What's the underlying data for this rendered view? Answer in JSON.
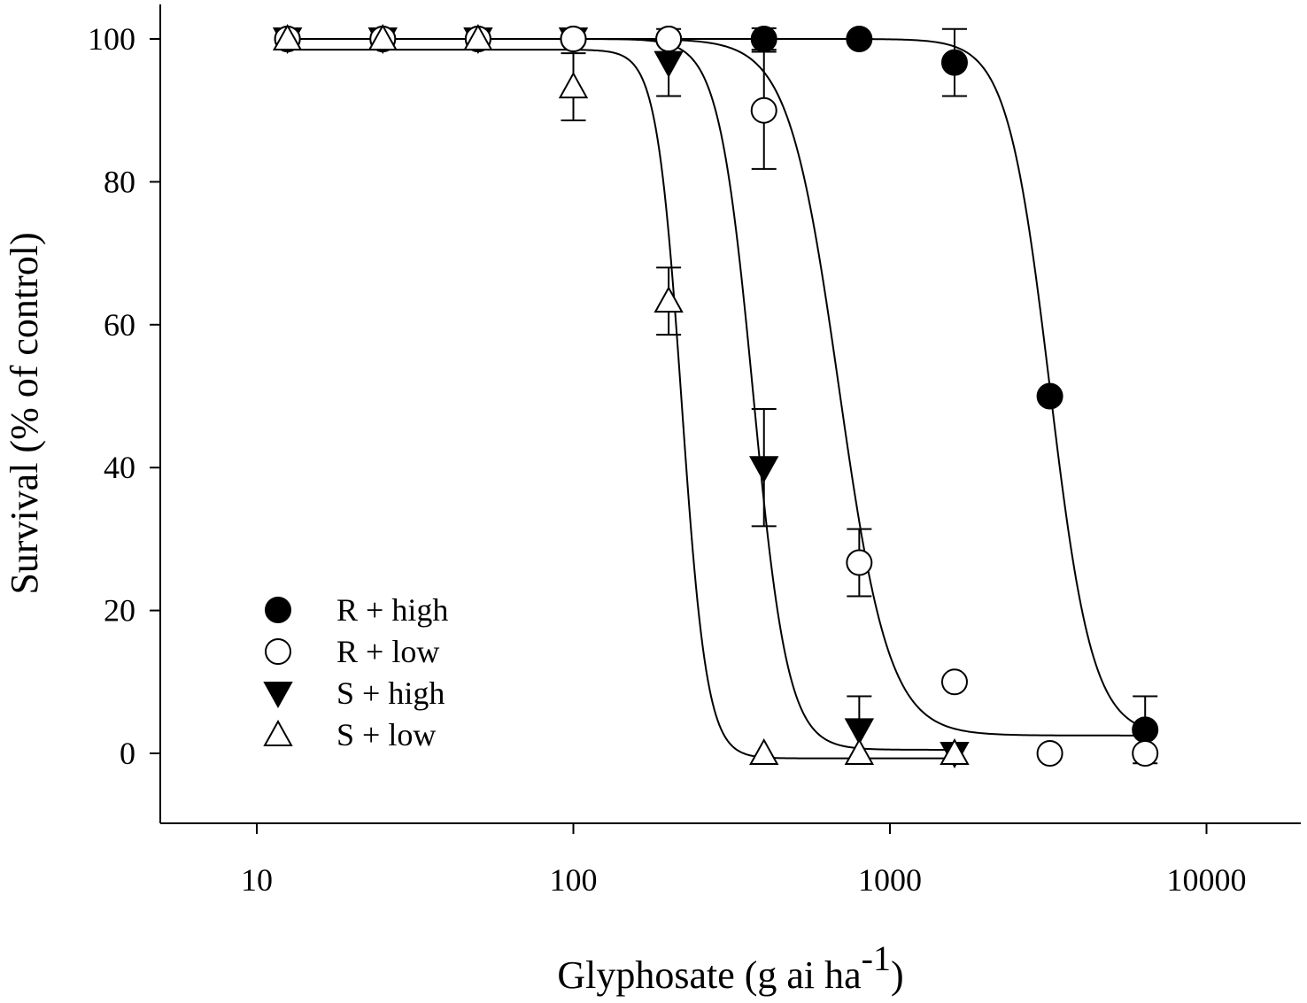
{
  "chart_data": {
    "type": "scatter",
    "title": "",
    "xlabel": "Glyphosate (g ai ha",
    "xlabel_superscript": "-1",
    "xlabel_suffix": ")",
    "ylabel": "Survival (% of control)",
    "xscale": "log",
    "xlim": [
      5.5,
      19000
    ],
    "ylim": [
      -10,
      105
    ],
    "xticks": [
      10,
      100,
      1000,
      10000
    ],
    "xtick_labels": [
      "10",
      "100",
      "1000",
      "10000"
    ],
    "yticks": [
      0,
      20,
      40,
      60,
      80,
      100
    ],
    "ytick_labels": [
      "0",
      "20",
      "40",
      "60",
      "80",
      "100"
    ],
    "grid": false,
    "legend_position": "bottom-left",
    "series": [
      {
        "name": "R + high",
        "marker": "filled-circle",
        "x": [
          12.5,
          25,
          50,
          100,
          200,
          400,
          800,
          1600,
          3200,
          6400
        ],
        "y": [
          100,
          100,
          100,
          100,
          100,
          100,
          100,
          96.7,
          50,
          3.3
        ],
        "err": [
          0,
          0,
          0,
          0,
          0,
          1.5,
          0,
          4.7,
          0,
          4.7
        ],
        "fit": {
          "top": 100,
          "bottom": 2.5,
          "ec50": 3200,
          "slope": 6.5
        }
      },
      {
        "name": "R + low",
        "marker": "open-circle",
        "x": [
          12.5,
          25,
          50,
          100,
          200,
          400,
          800,
          1600,
          3200,
          6400
        ],
        "y": [
          100,
          100,
          100,
          100,
          100,
          90,
          26.7,
          10,
          0,
          0
        ],
        "err": [
          0,
          0,
          0,
          0,
          0,
          8.2,
          4.7,
          0,
          0,
          0
        ],
        "fit": {
          "top": 100,
          "bottom": 2.5,
          "ec50": 690,
          "slope": 5.5
        }
      },
      {
        "name": "S + high",
        "marker": "filled-triangle-down",
        "x": [
          12.5,
          25,
          50,
          100,
          200,
          400,
          800,
          1600
        ],
        "y": [
          100,
          100,
          100,
          100,
          96.7,
          40,
          3.3,
          0
        ],
        "err": [
          0,
          0,
          0,
          0,
          4.7,
          8.2,
          4.7,
          0
        ],
        "fit": {
          "top": 100,
          "bottom": 0.5,
          "ec50": 370,
          "slope": 8
        }
      },
      {
        "name": "S + low",
        "marker": "open-triangle-up",
        "x": [
          12.5,
          25,
          50,
          100,
          200,
          400,
          800,
          1600
        ],
        "y": [
          100,
          100,
          100,
          93.3,
          63.3,
          0,
          0,
          0
        ],
        "err": [
          0,
          0,
          0,
          4.7,
          4.7,
          0,
          0,
          0
        ],
        "fit": {
          "top": 98.5,
          "bottom": -0.7,
          "ec50": 220,
          "slope": 11
        }
      }
    ]
  }
}
